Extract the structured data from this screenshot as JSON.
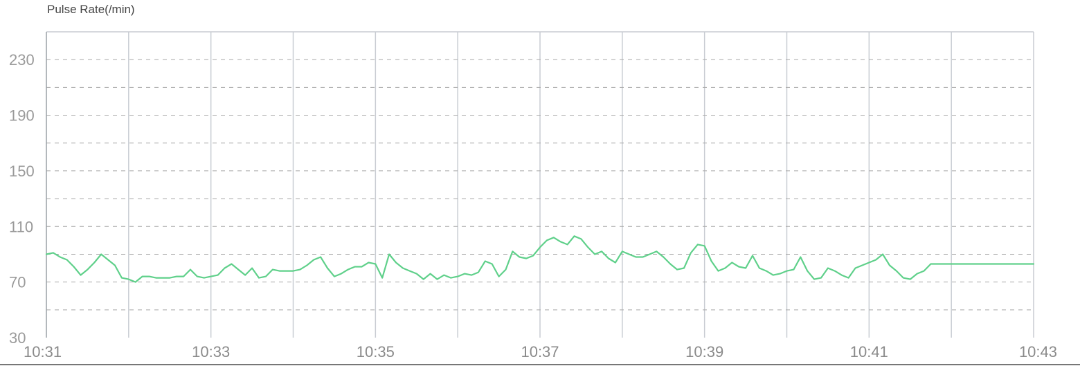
{
  "chart_title": "Pulse Rate(/min)",
  "colors": {
    "line": "#5fd08a",
    "grid_major": "#c8ccd2",
    "grid_minor": "#a8a8a8",
    "axis": "#9aa0a6",
    "bottom_rule": "#777777"
  },
  "chart_data": {
    "type": "line",
    "title": "Pulse Rate(/min)",
    "xlabel": "",
    "ylabel": "",
    "ylim": [
      30,
      250
    ],
    "xlim": [
      "10:31",
      "10:43"
    ],
    "y_ticks": [
      30,
      70,
      110,
      150,
      190,
      230
    ],
    "x_ticks": [
      "10:31",
      "10:33",
      "10:35",
      "10:37",
      "10:39",
      "10:41",
      "10:43"
    ],
    "grid": true,
    "legend": "none",
    "series": [
      {
        "x": [
          "10:31:00",
          "10:31:05",
          "10:31:10",
          "10:31:15",
          "10:31:20",
          "10:31:25",
          "10:31:30",
          "10:31:35",
          "10:31:40",
          "10:31:45",
          "10:31:50",
          "10:31:55",
          "10:32:00",
          "10:32:05",
          "10:32:10",
          "10:32:15",
          "10:32:20",
          "10:32:25",
          "10:32:30",
          "10:32:35",
          "10:32:40",
          "10:32:45",
          "10:32:50",
          "10:32:55",
          "10:33:00",
          "10:33:05",
          "10:33:10",
          "10:33:15",
          "10:33:20",
          "10:33:25",
          "10:33:30",
          "10:33:35",
          "10:33:40",
          "10:33:45",
          "10:33:50",
          "10:33:55",
          "10:34:00",
          "10:34:05",
          "10:34:10",
          "10:34:15",
          "10:34:20",
          "10:34:25",
          "10:34:30",
          "10:34:35",
          "10:34:40",
          "10:34:45",
          "10:34:50",
          "10:34:55",
          "10:35:00",
          "10:35:05",
          "10:35:10",
          "10:35:15",
          "10:35:20",
          "10:35:25",
          "10:35:30",
          "10:35:35",
          "10:35:40",
          "10:35:45",
          "10:35:50",
          "10:35:55",
          "10:36:00",
          "10:36:05",
          "10:36:10",
          "10:36:15",
          "10:36:20",
          "10:36:25",
          "10:36:30",
          "10:36:35",
          "10:36:40",
          "10:36:45",
          "10:36:50",
          "10:36:55",
          "10:37:00",
          "10:37:05",
          "10:37:10",
          "10:37:15",
          "10:37:20",
          "10:37:25",
          "10:37:30",
          "10:37:35",
          "10:37:40",
          "10:37:45",
          "10:37:50",
          "10:37:55",
          "10:38:00",
          "10:38:05",
          "10:38:10",
          "10:38:15",
          "10:38:20",
          "10:38:25",
          "10:38:30",
          "10:38:35",
          "10:38:40",
          "10:38:45",
          "10:38:50",
          "10:38:55",
          "10:39:00",
          "10:39:05",
          "10:39:10",
          "10:39:15",
          "10:39:20",
          "10:39:25",
          "10:39:30",
          "10:39:35",
          "10:39:40",
          "10:39:45",
          "10:39:50",
          "10:39:55",
          "10:40:00",
          "10:40:05",
          "10:40:10",
          "10:40:15",
          "10:40:20",
          "10:40:25",
          "10:40:30",
          "10:40:35",
          "10:40:40",
          "10:40:45",
          "10:40:50",
          "10:40:55",
          "10:41:00",
          "10:41:05",
          "10:41:10",
          "10:41:15",
          "10:41:20",
          "10:41:25",
          "10:41:30",
          "10:41:35",
          "10:41:40",
          "10:41:45",
          "10:41:50",
          "10:41:55",
          "10:42:00",
          "10:42:05",
          "10:42:10",
          "10:42:15",
          "10:42:20",
          "10:42:25",
          "10:42:30",
          "10:42:35",
          "10:42:40",
          "10:42:45",
          "10:42:50",
          "10:42:55",
          "10:43:00"
        ],
        "values": [
          90,
          91,
          88,
          86,
          81,
          75,
          79,
          84,
          90,
          86,
          82,
          73,
          72,
          70,
          74,
          74,
          73,
          73,
          73,
          74,
          74,
          79,
          74,
          73,
          74,
          75,
          80,
          83,
          79,
          75,
          80,
          73,
          74,
          79,
          78,
          78,
          78,
          79,
          82,
          86,
          88,
          80,
          74,
          76,
          79,
          81,
          81,
          84,
          83,
          73,
          90,
          84,
          80,
          78,
          76,
          72,
          76,
          72,
          75,
          73,
          74,
          76,
          75,
          77,
          85,
          83,
          74,
          79,
          92,
          88,
          87,
          89,
          95,
          100,
          102,
          99,
          97,
          103,
          101,
          95,
          90,
          92,
          87,
          84,
          92,
          90,
          88,
          88,
          90,
          92,
          88,
          83,
          79,
          80,
          91,
          97,
          96,
          85,
          78,
          80,
          84,
          81,
          80,
          89,
          80,
          78,
          75,
          76,
          78,
          79,
          88,
          78,
          72,
          73,
          80,
          78,
          75,
          73,
          80,
          82,
          84,
          86,
          90,
          82,
          78,
          73,
          72,
          76,
          78,
          83,
          83,
          83,
          83,
          83,
          83,
          83,
          83,
          83,
          83,
          83,
          83,
          83,
          83,
          83,
          83
        ]
      }
    ]
  }
}
